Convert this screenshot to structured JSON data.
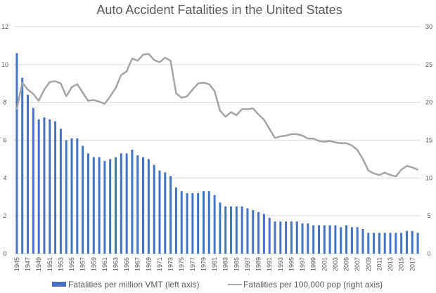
{
  "chart_data": {
    "type": "bar+line",
    "title": "Auto Accident Fatalities in the United States",
    "xlabel": "",
    "ylabel_left": "",
    "ylabel_right": "",
    "ylim_left": [
      0,
      12
    ],
    "ylim_right": [
      0,
      30
    ],
    "yticks_left": [
      "0",
      "2",
      "4",
      "6",
      "8",
      "10",
      "12"
    ],
    "yticks_right": [
      "0",
      "5",
      "10",
      "15",
      "20",
      "25",
      "30"
    ],
    "grid": true,
    "legend_position": "bottom",
    "colors": {
      "bars": "#4472C4",
      "line": "#A5A5A5",
      "text": "#595959",
      "grid": "#D9D9D9"
    },
    "x": [
      1945,
      1946,
      1947,
      1948,
      1949,
      1950,
      1951,
      1952,
      1953,
      1954,
      1955,
      1956,
      1957,
      1958,
      1959,
      1960,
      1961,
      1962,
      1963,
      1964,
      1965,
      1966,
      1967,
      1968,
      1969,
      1970,
      1971,
      1972,
      1973,
      1974,
      1975,
      1976,
      1977,
      1978,
      1979,
      1980,
      1981,
      1982,
      1983,
      1984,
      1985,
      1986,
      1987,
      1988,
      1989,
      1990,
      1991,
      1992,
      1993,
      1994,
      1995,
      1996,
      1997,
      1998,
      1999,
      2000,
      2001,
      2002,
      2003,
      2004,
      2005,
      2006,
      2007,
      2008,
      2009,
      2010,
      2011,
      2012,
      2013,
      2014,
      2015,
      2016,
      2017,
      2018
    ],
    "xtick_labels": [
      "1945",
      "1947",
      "1949",
      "1951",
      "1953",
      "1955",
      "1957",
      "1959",
      "1961",
      "1963",
      "1965",
      "1967",
      "1969",
      "1971",
      "1973",
      "1975",
      "1977",
      "1979",
      "1981",
      "1983",
      "1985",
      "1987",
      "1989",
      "1991",
      "1993",
      "1995",
      "1997",
      "1999",
      "2001",
      "2003",
      "2005",
      "2007",
      "2009",
      "2011",
      "2013",
      "2015",
      "2017"
    ],
    "series": [
      {
        "name": "Fatalities per million VMT (left axis)",
        "type": "bar",
        "axis": "left",
        "values": [
          10.6,
          9.3,
          8.4,
          7.7,
          7.1,
          7.2,
          7.1,
          7.0,
          6.6,
          6.0,
          6.1,
          6.1,
          5.7,
          5.3,
          5.1,
          5.1,
          4.9,
          5.0,
          5.1,
          5.3,
          5.3,
          5.5,
          5.2,
          5.1,
          5.0,
          4.7,
          4.4,
          4.3,
          4.1,
          3.5,
          3.3,
          3.2,
          3.2,
          3.2,
          3.3,
          3.3,
          3.1,
          2.7,
          2.5,
          2.5,
          2.5,
          2.5,
          2.4,
          2.3,
          2.2,
          2.1,
          1.9,
          1.7,
          1.7,
          1.7,
          1.7,
          1.7,
          1.6,
          1.6,
          1.5,
          1.5,
          1.5,
          1.5,
          1.5,
          1.4,
          1.5,
          1.4,
          1.4,
          1.3,
          1.1,
          1.1,
          1.1,
          1.1,
          1.1,
          1.1,
          1.1,
          1.2,
          1.2,
          1.1
        ]
      },
      {
        "name": "Fatalities per 100,000 pop (right axis)",
        "type": "line",
        "axis": "right",
        "values": [
          19.1,
          22.6,
          21.7,
          21.1,
          20.2,
          21.7,
          22.7,
          22.8,
          22.5,
          20.8,
          22.0,
          22.4,
          21.3,
          20.2,
          20.3,
          20.1,
          19.8,
          20.8,
          21.9,
          23.6,
          24.1,
          25.8,
          25.5,
          26.3,
          26.4,
          25.6,
          25.3,
          25.9,
          25.5,
          21.2,
          20.6,
          20.8,
          21.7,
          22.5,
          22.6,
          22.4,
          21.5,
          18.9,
          18.1,
          18.7,
          18.3,
          19.1,
          19.1,
          19.2,
          18.4,
          17.7,
          16.5,
          15.3,
          15.5,
          15.6,
          15.8,
          15.8,
          15.6,
          15.2,
          15.2,
          14.9,
          14.8,
          14.9,
          14.7,
          14.6,
          14.6,
          14.3,
          13.7,
          12.5,
          11.0,
          10.6,
          10.4,
          10.7,
          10.4,
          10.2,
          11.1,
          11.6,
          11.4,
          11.1
        ]
      }
    ]
  }
}
